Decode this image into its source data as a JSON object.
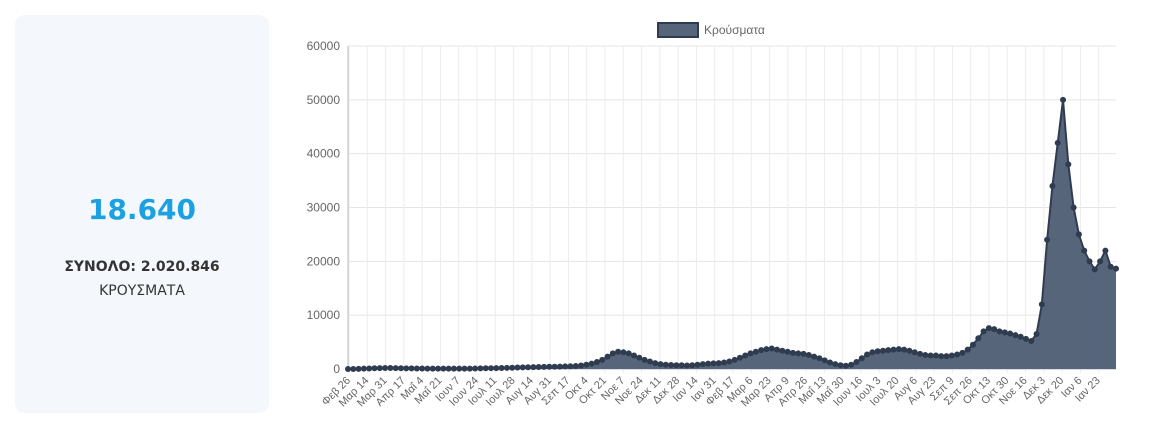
{
  "stats": {
    "today_value": "18.640",
    "total_label": "ΣΥΝΟΛΟ: 2.020.846",
    "unit_label": "ΚΡΟΥΣΜΑΤΑ"
  },
  "colors": {
    "accent": "#1ba1e2",
    "series_fill": "#56657a",
    "series_line": "#2f3c4f",
    "card_bg": "#f4f8fc"
  },
  "chart_data": {
    "type": "area",
    "legend": {
      "label": "Κρούσματα",
      "position": "top"
    },
    "grid": true,
    "ylim": [
      0,
      60000
    ],
    "y_ticks": [
      "0",
      "10000",
      "20000",
      "30000",
      "40000",
      "50000",
      "60000"
    ],
    "x_tick_labels": [
      "Φεβ 26",
      "Μαρ 14",
      "Μαρ 31",
      "Απρ 17",
      "Μαΐ 4",
      "Μαΐ 21",
      "Ιουν 7",
      "Ιουν 24",
      "Ιουλ 11",
      "Ιουλ 28",
      "Αυγ 14",
      "Αυγ 31",
      "Σεπ 17",
      "Οκτ 4",
      "Οκτ 21",
      "Νοε 7",
      "Νοε 24",
      "Δεκ 11",
      "Δεκ 28",
      "Ιαν 14",
      "Ιαν 31",
      "Φεβ 17",
      "Μαρ 6",
      "Μαρ 23",
      "Απρ 9",
      "Απρ 26",
      "Μαΐ 13",
      "Μαΐ 30",
      "Ιουν 16",
      "Ιουλ 3",
      "Ιουλ 20",
      "Αυγ 6",
      "Αυγ 23",
      "Σεπ 9",
      "Σεπ 26",
      "Οκτ 13",
      "Οκτ 30",
      "Νοε 16",
      "Δεκ 3",
      "Δεκ 20",
      "Ιαν 6",
      "Ιαν 23"
    ],
    "values": [
      1,
      10,
      30,
      60,
      90,
      130,
      160,
      180,
      180,
      160,
      140,
      120,
      110,
      100,
      90,
      80,
      70,
      60,
      60,
      60,
      60,
      60,
      70,
      80,
      100,
      120,
      140,
      150,
      160,
      190,
      210,
      240,
      270,
      300,
      330,
      350,
      370,
      390,
      410,
      430,
      450,
      480,
      500,
      550,
      650,
      800,
      1000,
      1300,
      1700,
      2300,
      2900,
      3200,
      3100,
      2900,
      2500,
      2100,
      1700,
      1400,
      1100,
      900,
      800,
      750,
      700,
      700,
      650,
      700,
      800,
      900,
      1000,
      1050,
      1100,
      1200,
      1400,
      1700,
      2100,
      2500,
      2900,
      3200,
      3500,
      3700,
      3800,
      3600,
      3400,
      3200,
      3000,
      2900,
      2800,
      2600,
      2300,
      2000,
      1600,
      1200,
      900,
      700,
      600,
      800,
      1300,
      2000,
      2700,
      3100,
      3300,
      3400,
      3500,
      3600,
      3700,
      3600,
      3400,
      3100,
      2800,
      2600,
      2500,
      2500,
      2400,
      2400,
      2500,
      2700,
      3000,
      3600,
      4500,
      5700,
      7000,
      7600,
      7400,
      7000,
      6800,
      6600,
      6300,
      6000,
      5600,
      5200,
      6500,
      12000,
      24000,
      34000,
      42000,
      50000,
      38000,
      30000,
      25000,
      22000,
      20000,
      18500,
      20000,
      22000,
      19000,
      18640
    ]
  }
}
